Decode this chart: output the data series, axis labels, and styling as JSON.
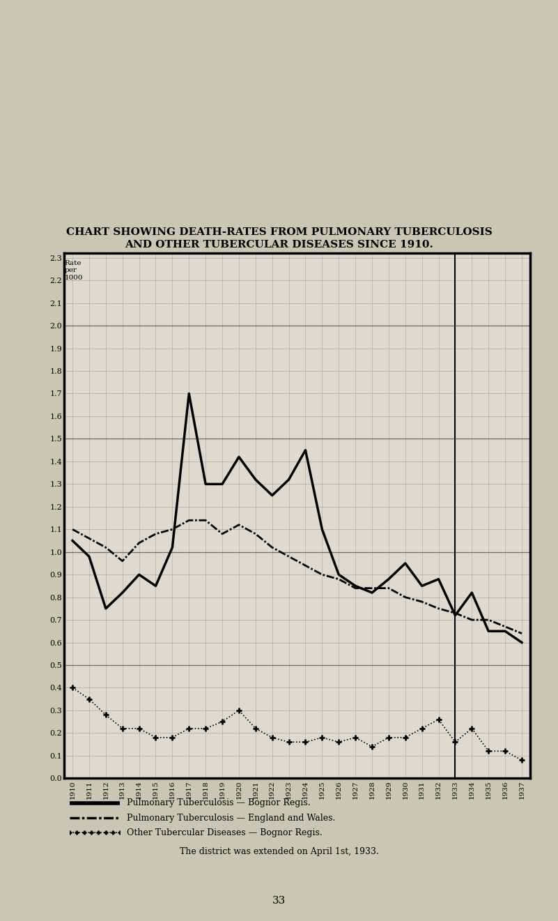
{
  "title_line1": "CHART SHOWING DEATH-RATES FROM PULMONARY TUBERCULOSIS",
  "title_line2": "AND OTHER TUBERCULAR DISEASES SINCE 1910.",
  "years": [
    1910,
    1911,
    1912,
    1913,
    1914,
    1915,
    1916,
    1917,
    1918,
    1919,
    1920,
    1921,
    1922,
    1923,
    1924,
    1925,
    1926,
    1927,
    1928,
    1929,
    1930,
    1931,
    1932,
    1933,
    1934,
    1935,
    1936,
    1937
  ],
  "pulmonary_bognor": [
    1.05,
    0.98,
    0.75,
    0.82,
    0.9,
    0.85,
    1.02,
    1.7,
    1.3,
    1.3,
    1.42,
    1.32,
    1.25,
    1.32,
    1.45,
    1.1,
    0.9,
    0.85,
    0.82,
    0.88,
    0.95,
    0.85,
    0.88,
    0.72,
    0.82,
    0.65,
    0.65,
    0.6
  ],
  "pulmonary_england": [
    1.1,
    1.06,
    1.02,
    0.96,
    1.04,
    1.08,
    1.1,
    1.14,
    1.14,
    1.08,
    1.12,
    1.08,
    1.02,
    0.98,
    0.94,
    0.9,
    0.88,
    0.84,
    0.84,
    0.84,
    0.8,
    0.78,
    0.75,
    0.73,
    0.7,
    0.7,
    0.67,
    0.64
  ],
  "other_bognor": [
    0.4,
    0.35,
    0.28,
    0.22,
    0.22,
    0.18,
    0.18,
    0.22,
    0.22,
    0.25,
    0.3,
    0.22,
    0.18,
    0.16,
    0.16,
    0.18,
    0.16,
    0.18,
    0.14,
    0.18,
    0.18,
    0.22,
    0.26,
    0.16,
    0.22,
    0.12,
    0.12,
    0.08
  ],
  "ylim_min": 0.0,
  "ylim_max": 2.3,
  "ytick_step": 0.1,
  "bg_color": "#dedad0",
  "paper_color": "#cac6b4",
  "legend_line1": "Pulmonary Tuberculosis — Bognor Regis.",
  "legend_line2": "Pulmonary Tuberculosis — England and Wales.",
  "legend_line3": "Other Tubercular Diseases — Bognor Regis.",
  "note": "The district was extended on April 1st, 1933.",
  "page_num": "33"
}
